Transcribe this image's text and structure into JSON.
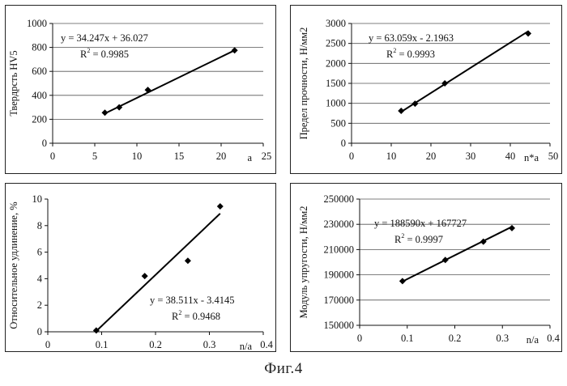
{
  "figure_caption": "Фиг.4",
  "chart_data": [
    {
      "type": "scatter",
      "ylabel": "Твердрсть HV5",
      "xlabel": "a",
      "xlim": [
        0,
        25
      ],
      "ylim": [
        0,
        1000
      ],
      "xticks": [
        0,
        5,
        10,
        15,
        20,
        25
      ],
      "yticks": [
        0,
        200,
        400,
        600,
        800,
        1000
      ],
      "points": [
        [
          6.2,
          255
        ],
        [
          7.9,
          300
        ],
        [
          11.3,
          445
        ],
        [
          21.6,
          775
        ]
      ],
      "trendline": {
        "slope": 34.247,
        "intercept": 36.027,
        "x_range": [
          6.2,
          21.6
        ]
      },
      "equation": "y = 34.247x + 36.027",
      "r2_prefix": "R",
      "r2_value": " = 0.9985",
      "grid": "horizontal"
    },
    {
      "type": "scatter",
      "ylabel": "Предел прочности, Н/мм2",
      "xlabel": "n*a",
      "xlim": [
        0,
        50
      ],
      "ylim": [
        0,
        3000
      ],
      "xticks": [
        0,
        10,
        20,
        30,
        40,
        50
      ],
      "yticks": [
        0,
        500,
        1000,
        1500,
        2000,
        2500,
        3000
      ],
      "points": [
        [
          12.5,
          810
        ],
        [
          16,
          990
        ],
        [
          23.5,
          1500
        ],
        [
          44.5,
          2750
        ]
      ],
      "trendline": {
        "slope": 63.059,
        "intercept": -2.1963,
        "x_range": [
          12.5,
          44.5
        ]
      },
      "equation": "y = 63.059x - 2.1963",
      "r2_prefix": "R",
      "r2_value": " = 0.9993",
      "grid": "horizontal"
    },
    {
      "type": "scatter",
      "ylabel": "Относительное удлинение, %",
      "xlabel": "n/a",
      "xlim": [
        0,
        0.4
      ],
      "ylim": [
        0,
        10
      ],
      "xticks": [
        0,
        0.1,
        0.2,
        0.3,
        0.4
      ],
      "yticks": [
        0,
        2,
        4,
        6,
        8,
        10
      ],
      "points": [
        [
          0.09,
          0.1
        ],
        [
          0.18,
          4.2
        ],
        [
          0.26,
          5.35
        ],
        [
          0.32,
          9.45
        ]
      ],
      "trendline": {
        "slope": 38.511,
        "intercept": -3.4145,
        "x_range": [
          0.092,
          0.32
        ]
      },
      "equation": "y = 38.511x - 3.4145",
      "r2_prefix": "R",
      "r2_value": " = 0.9468",
      "grid": "none"
    },
    {
      "type": "scatter",
      "ylabel": "Модуль упругости, Н/мм2",
      "xlabel": "n/a",
      "xlim": [
        0,
        0.4
      ],
      "ylim": [
        150000,
        250000
      ],
      "xticks": [
        0,
        0.1,
        0.2,
        0.3,
        0.4
      ],
      "yticks": [
        150000,
        170000,
        190000,
        210000,
        230000,
        250000
      ],
      "points": [
        [
          0.09,
          185000
        ],
        [
          0.18,
          201800
        ],
        [
          0.26,
          216300
        ],
        [
          0.32,
          227000
        ]
      ],
      "trendline": {
        "slope": 188590,
        "intercept": 167727,
        "x_range": [
          0.09,
          0.32
        ]
      },
      "equation": "y = 188590x + 167727",
      "r2_prefix": "R",
      "r2_value": " = 0.9997",
      "grid": "horizontal"
    }
  ]
}
